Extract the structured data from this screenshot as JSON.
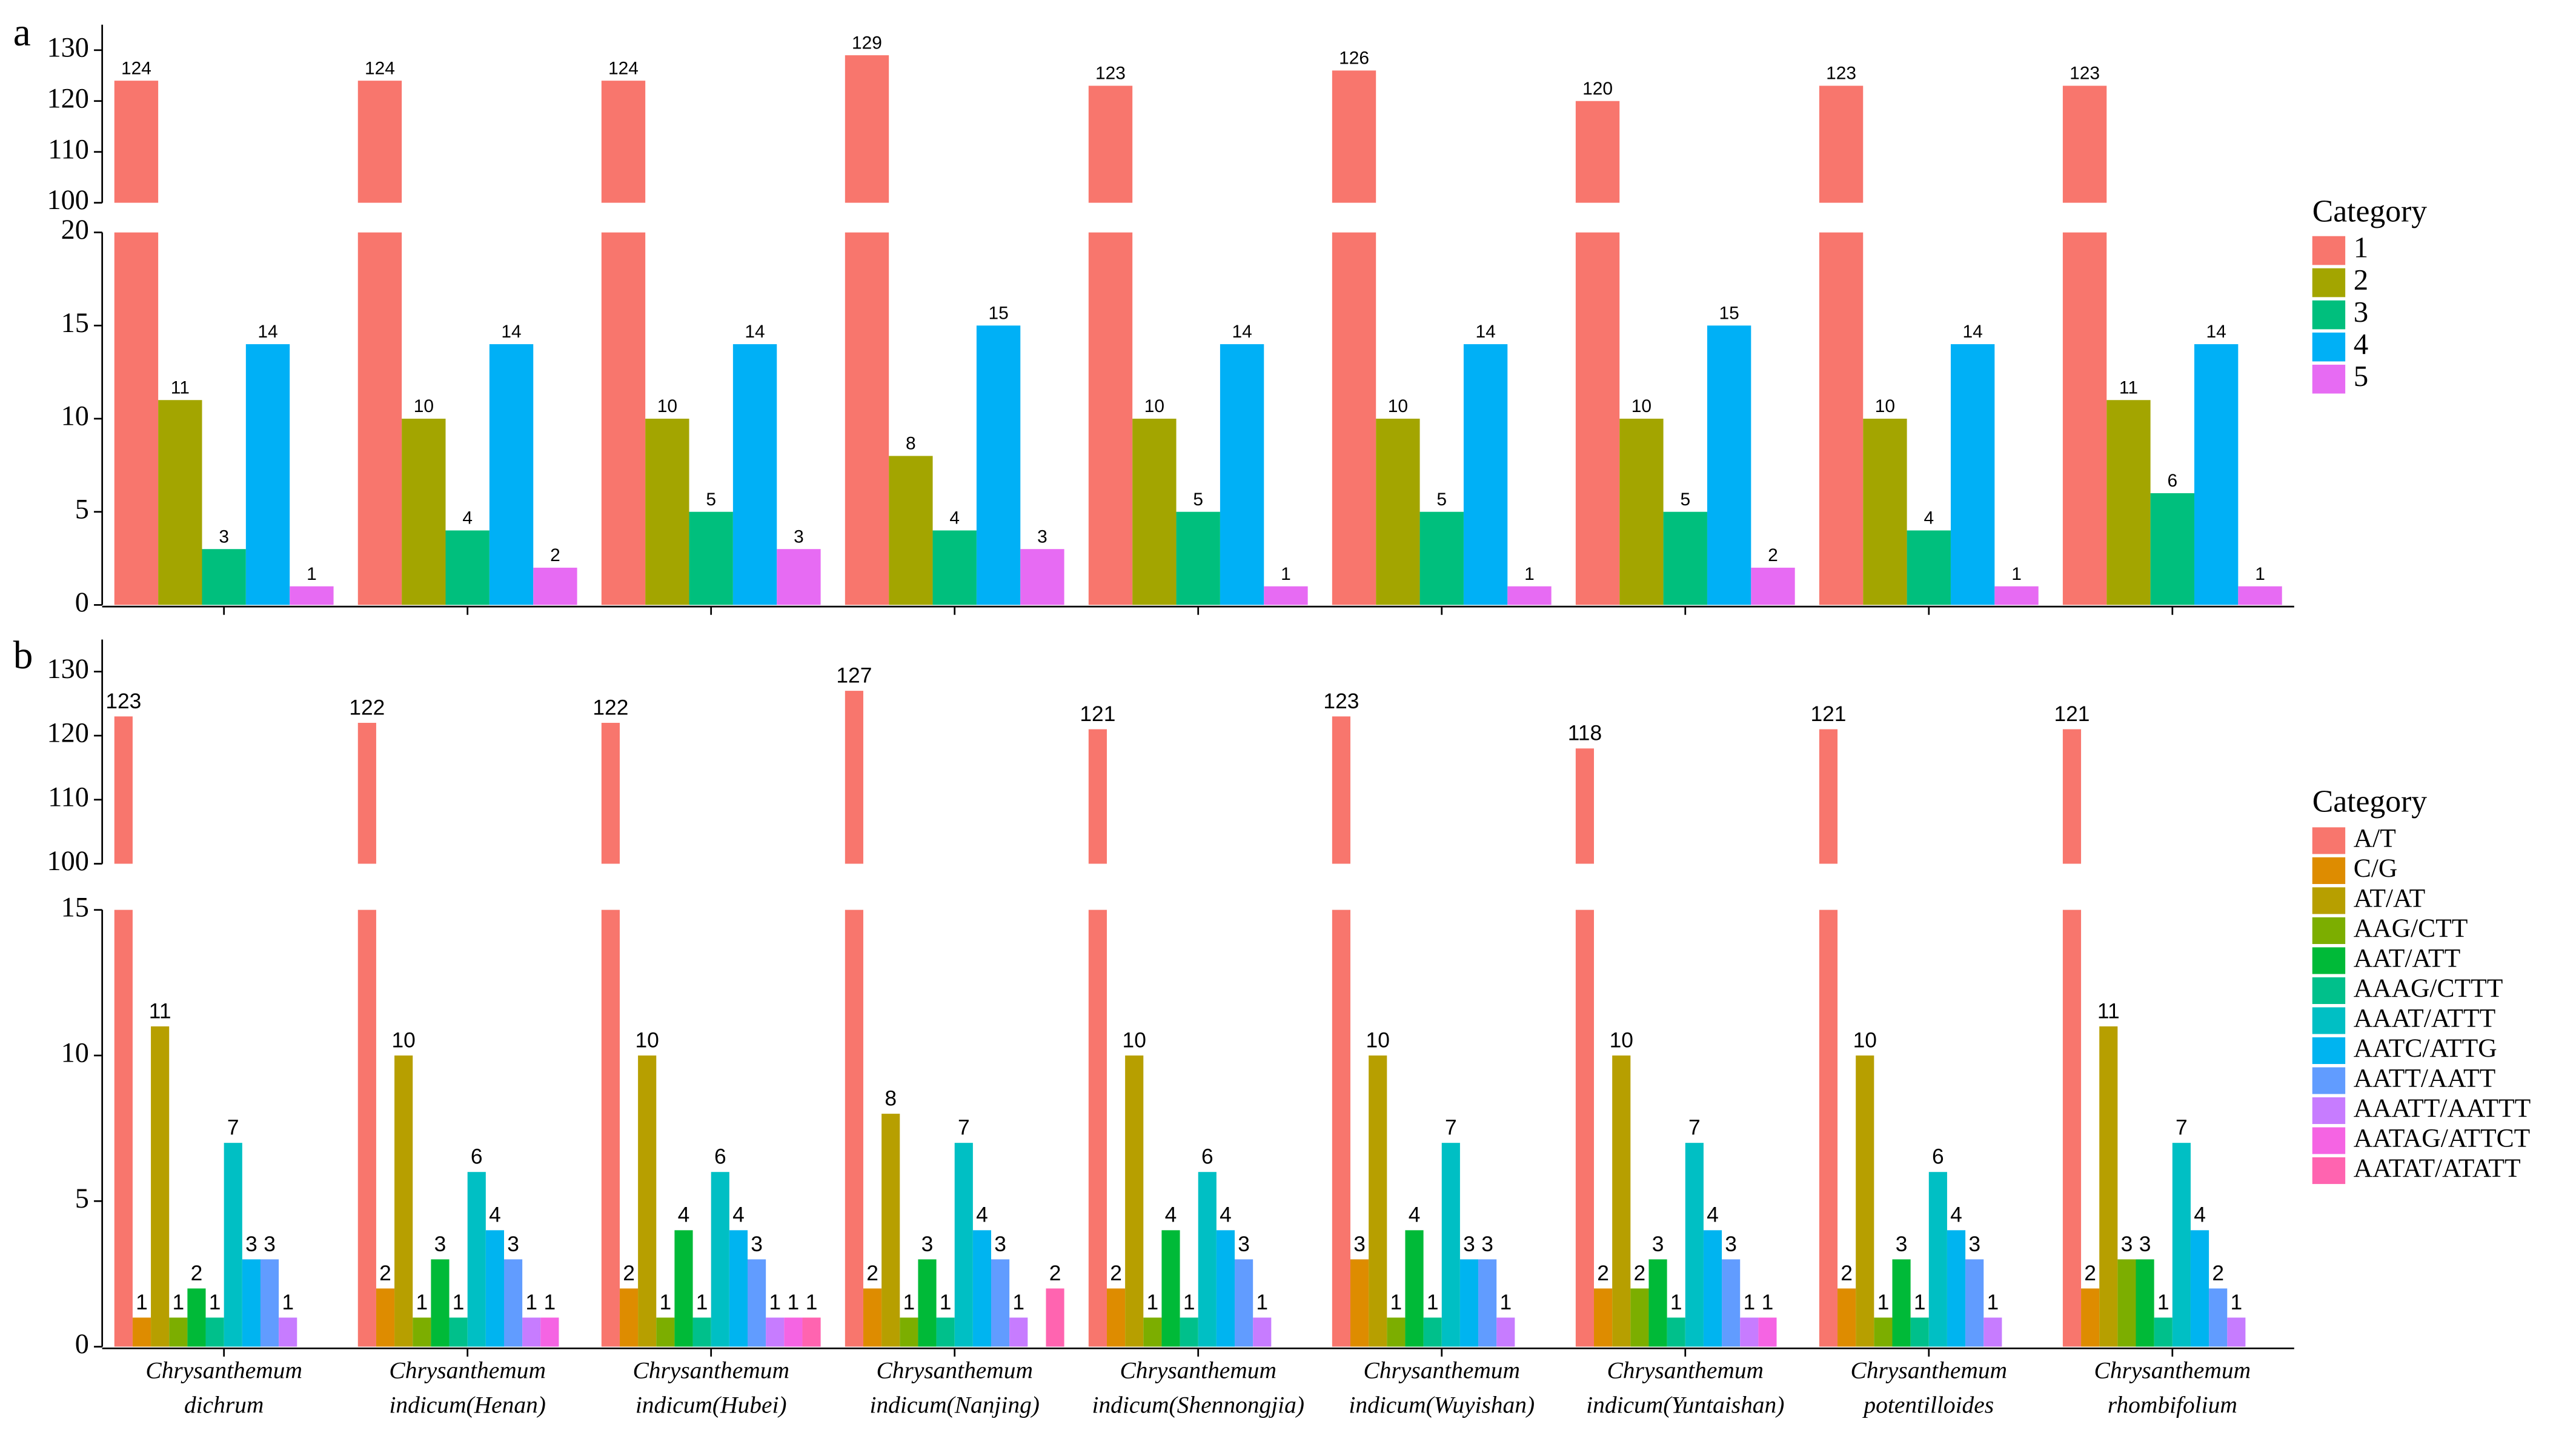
{
  "chart_data": [
    {
      "type": "bar",
      "label": "a",
      "legend_title": "Category",
      "segments": [
        {
          "ylim": [
            0,
            20
          ],
          "yticks": [
            0,
            5,
            10,
            15,
            20
          ]
        },
        {
          "ylim": [
            100,
            135
          ],
          "yticks": [
            100,
            110,
            120,
            130
          ]
        }
      ],
      "series": [
        {
          "name": "1",
          "color": "#F8766D",
          "values": [
            124,
            124,
            124,
            129,
            123,
            126,
            120,
            123,
            123
          ]
        },
        {
          "name": "2",
          "color": "#A3A500",
          "values": [
            11,
            10,
            10,
            8,
            10,
            10,
            10,
            10,
            11
          ]
        },
        {
          "name": "3",
          "color": "#00BF7D",
          "values": [
            3,
            4,
            5,
            4,
            5,
            5,
            5,
            4,
            6
          ]
        },
        {
          "name": "4",
          "color": "#00B0F6",
          "values": [
            14,
            14,
            14,
            15,
            14,
            14,
            15,
            14,
            14
          ]
        },
        {
          "name": "5",
          "color": "#E76BF3",
          "values": [
            1,
            2,
            3,
            3,
            1,
            1,
            2,
            1,
            1
          ]
        }
      ]
    },
    {
      "type": "bar",
      "label": "b",
      "legend_title": "Category",
      "categories": [
        "Chrysanthemum dichrum",
        "Chrysanthemum indicum(Henan)",
        "Chrysanthemum indicum(Hubei)",
        "Chrysanthemum indicum(Nanjing)",
        "Chrysanthemum indicum(Shennongjia)",
        "Chrysanthemum indicum(Wuyishan)",
        "Chrysanthemum indicum(Yuntaishan)",
        "Chrysanthemum potentilloides",
        "Chrysanthemum rhombifolium"
      ],
      "segments": [
        {
          "ylim": [
            0,
            15
          ],
          "yticks": [
            0,
            5,
            10,
            15
          ]
        },
        {
          "ylim": [
            100,
            135
          ],
          "yticks": [
            100,
            110,
            120,
            130
          ]
        }
      ],
      "series": [
        {
          "name": "A/T",
          "color": "#F8766D",
          "values": [
            123,
            122,
            122,
            127,
            121,
            123,
            118,
            121,
            121
          ]
        },
        {
          "name": "C/G",
          "color": "#DE8C00",
          "values": [
            1,
            2,
            2,
            2,
            2,
            3,
            2,
            2,
            2
          ]
        },
        {
          "name": "AT/AT",
          "color": "#B79F00",
          "values": [
            11,
            10,
            10,
            8,
            10,
            10,
            10,
            10,
            11
          ]
        },
        {
          "name": "AAG/CTT",
          "color": "#7CAE00",
          "values": [
            1,
            1,
            1,
            1,
            1,
            1,
            2,
            1,
            3
          ]
        },
        {
          "name": "AAT/ATT",
          "color": "#00BA38",
          "values": [
            2,
            3,
            4,
            3,
            4,
            4,
            3,
            3,
            3
          ]
        },
        {
          "name": "AAAG/CTTT",
          "color": "#00C08B",
          "values": [
            1,
            1,
            1,
            1,
            1,
            1,
            1,
            1,
            1
          ]
        },
        {
          "name": "AAAT/ATTT",
          "color": "#00BFC4",
          "values": [
            7,
            6,
            6,
            7,
            6,
            7,
            7,
            6,
            7
          ]
        },
        {
          "name": "AATC/ATTG",
          "color": "#00B4F0",
          "values": [
            3,
            4,
            4,
            4,
            4,
            3,
            4,
            4,
            4
          ]
        },
        {
          "name": "AATT/AATT",
          "color": "#619CFF",
          "values": [
            3,
            3,
            3,
            3,
            3,
            3,
            3,
            3,
            2
          ]
        },
        {
          "name": "AAATT/AATTT",
          "color": "#C77CFF",
          "values": [
            1,
            1,
            1,
            1,
            1,
            1,
            1,
            1,
            1
          ]
        },
        {
          "name": "AATAG/ATTCT",
          "color": "#F564E3",
          "values": [
            null,
            1,
            1,
            null,
            null,
            null,
            1,
            null,
            null
          ]
        },
        {
          "name": "AATAT/ATATT",
          "color": "#FF64B0",
          "values": [
            null,
            null,
            1,
            2,
            null,
            null,
            null,
            null,
            null
          ]
        }
      ]
    }
  ]
}
